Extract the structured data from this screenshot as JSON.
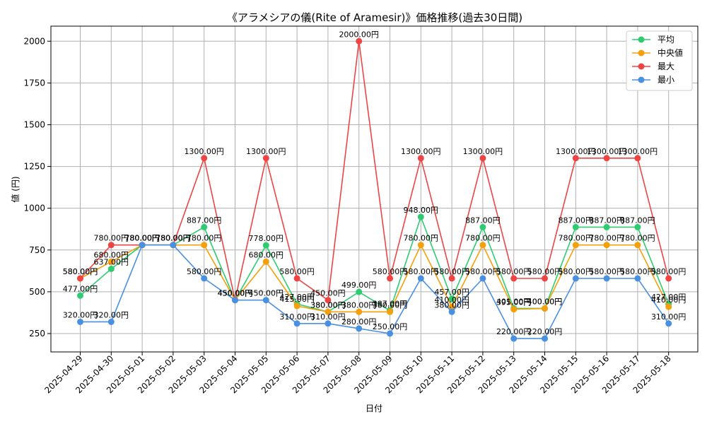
{
  "chart_data": {
    "type": "line",
    "title": "《アラメシアの儀(Rite of Aramesir)》価格推移(過去30日間)",
    "xlabel": "日付",
    "ylabel": "値 (円)",
    "ylim": [
      140,
      2090
    ],
    "yticks": [
      250,
      500,
      750,
      1000,
      1250,
      1500,
      1750,
      2000
    ],
    "grid": true,
    "legend_position": "top-right",
    "value_suffix": "円",
    "categories": [
      "2025-04-29",
      "2025-04-30",
      "2025-05-01",
      "2025-05-02",
      "2025-05-03",
      "2025-05-04",
      "2025-05-05",
      "2025-05-06",
      "2025-05-07",
      "2025-05-08",
      "2025-05-09",
      "2025-05-10",
      "2025-05-11",
      "2025-05-12",
      "2025-05-13",
      "2025-05-14",
      "2025-05-15",
      "2025-05-16",
      "2025-05-17",
      "2025-05-18"
    ],
    "series": [
      {
        "name": "平均",
        "color": "#2ecc71",
        "values": [
          477,
          637,
          780,
          780,
          887,
          450,
          778,
          427,
          380,
          499,
          387,
          948,
          457,
          887,
          401,
          400,
          887,
          887,
          887,
          427
        ]
      },
      {
        "name": "中央値",
        "color": "#f5a00a",
        "values": [
          580,
          680,
          780,
          780,
          780,
          450,
          680,
          415,
          380,
          380,
          380,
          780,
          410,
          780,
          395,
          400,
          780,
          780,
          780,
          410
        ]
      },
      {
        "name": "最大",
        "color": "#ef4444",
        "values": [
          580,
          780,
          780,
          780,
          1300,
          450,
          1300,
          580,
          450,
          2000,
          580,
          1300,
          580,
          1300,
          580,
          580,
          1300,
          1300,
          1300,
          580
        ]
      },
      {
        "name": "最小",
        "color": "#4a90e2",
        "values": [
          320,
          320,
          780,
          780,
          580,
          450,
          450,
          310,
          310,
          280,
          250,
          580,
          380,
          580,
          220,
          220,
          580,
          580,
          580,
          310
        ]
      }
    ]
  }
}
